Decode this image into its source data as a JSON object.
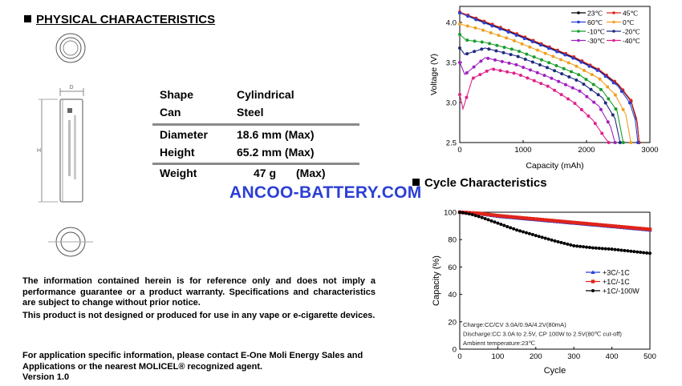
{
  "physical": {
    "title": "PHYSICAL CHARACTERISTICS",
    "drawing": {
      "dim_d": "D",
      "dim_h": "H"
    },
    "specs": [
      {
        "label": "Shape",
        "value": "Cylindrical"
      },
      {
        "label": "Can",
        "value": "Steel"
      },
      {
        "label": "Diameter",
        "value": "18.6 mm (Max)"
      },
      {
        "label": "Height",
        "value": "65.2 mm (Max)"
      },
      {
        "label": "Weight",
        "value": "47 g",
        "unit": "(Max)"
      }
    ]
  },
  "watermark": "ANCOO-BATTERY.COM",
  "notes": {
    "disclaimer": "The information contained herein is for reference only and does not imply a performance guarantee or a product warranty. Specifications and characteristics are subject to change without prior notice.",
    "usage": "This product is not designed or produced for use in any vape or e-cigarette devices.",
    "contact": "For application specific information, please contact E-One Moli Energy Sales and Applications or the nearest MOLICEL® recognized agent.",
    "version": "Version 1.0"
  },
  "cycle_title": "Cycle Characteristics",
  "chart_data": [
    {
      "type": "line",
      "xlabel": "Capacity (mAh)",
      "ylabel": "Voltage (V)",
      "xlim": [
        0,
        3000
      ],
      "ylim": [
        2.5,
        4.2
      ],
      "xticks": [
        "0",
        "1000",
        "2000",
        "3000"
      ],
      "yticks": [
        "2.5",
        "3.0",
        "3.5",
        "4.0"
      ],
      "legend_position": "top-right",
      "series": [
        {
          "name": "23℃",
          "color": "#000000",
          "points": [
            [
              0,
              4.12
            ],
            [
              300,
              4.03
            ],
            [
              800,
              3.88
            ],
            [
              1300,
              3.72
            ],
            [
              1800,
              3.56
            ],
            [
              2200,
              3.4
            ],
            [
              2500,
              3.22
            ],
            [
              2700,
              3.02
            ],
            [
              2800,
              2.75
            ],
            [
              2830,
              2.5
            ]
          ]
        },
        {
          "name": "45℃",
          "color": "#e0241b",
          "points": [
            [
              0,
              4.13
            ],
            [
              300,
              4.04
            ],
            [
              800,
              3.89
            ],
            [
              1300,
              3.73
            ],
            [
              1800,
              3.57
            ],
            [
              2200,
              3.41
            ],
            [
              2500,
              3.23
            ],
            [
              2700,
              3.03
            ],
            [
              2790,
              2.8
            ],
            [
              2830,
              2.5
            ]
          ]
        },
        {
          "name": "60℃",
          "color": "#2b3fd6",
          "points": [
            [
              0,
              4.12
            ],
            [
              300,
              4.02
            ],
            [
              800,
              3.87
            ],
            [
              1300,
              3.71
            ],
            [
              1800,
              3.55
            ],
            [
              2200,
              3.39
            ],
            [
              2500,
              3.2
            ],
            [
              2680,
              3.0
            ],
            [
              2770,
              2.78
            ],
            [
              2810,
              2.5
            ]
          ]
        },
        {
          "name": "0℃",
          "color": "#f0a020",
          "points": [
            [
              0,
              3.98
            ],
            [
              300,
              3.92
            ],
            [
              800,
              3.79
            ],
            [
              1300,
              3.63
            ],
            [
              1800,
              3.47
            ],
            [
              2200,
              3.3
            ],
            [
              2450,
              3.1
            ],
            [
              2620,
              2.85
            ],
            [
              2700,
              2.5
            ]
          ]
        },
        {
          "name": "-10℃",
          "color": "#1a9e2c",
          "points": [
            [
              0,
              3.85
            ],
            [
              100,
              3.78
            ],
            [
              400,
              3.75
            ],
            [
              900,
              3.65
            ],
            [
              1400,
              3.5
            ],
            [
              1900,
              3.34
            ],
            [
              2250,
              3.15
            ],
            [
              2480,
              2.9
            ],
            [
              2580,
              2.5
            ]
          ]
        },
        {
          "name": "-20℃",
          "color": "#1f2a80",
          "points": [
            [
              0,
              3.68
            ],
            [
              80,
              3.6
            ],
            [
              400,
              3.68
            ],
            [
              900,
              3.58
            ],
            [
              1400,
              3.43
            ],
            [
              1900,
              3.26
            ],
            [
              2250,
              3.06
            ],
            [
              2450,
              2.8
            ],
            [
              2530,
              2.5
            ]
          ]
        },
        {
          "name": "-30℃",
          "color": "#a020c0",
          "points": [
            [
              0,
              3.5
            ],
            [
              80,
              3.35
            ],
            [
              400,
              3.56
            ],
            [
              900,
              3.47
            ],
            [
              1400,
              3.32
            ],
            [
              1900,
              3.14
            ],
            [
              2200,
              2.95
            ],
            [
              2380,
              2.7
            ],
            [
              2450,
              2.5
            ]
          ]
        },
        {
          "name": "-40℃",
          "color": "#e0208c",
          "points": [
            [
              0,
              3.1
            ],
            [
              50,
              2.92
            ],
            [
              200,
              3.3
            ],
            [
              500,
              3.42
            ],
            [
              900,
              3.36
            ],
            [
              1400,
              3.2
            ],
            [
              1800,
              3.0
            ],
            [
              2100,
              2.78
            ],
            [
              2300,
              2.55
            ],
            [
              2350,
              2.5
            ]
          ]
        }
      ]
    },
    {
      "type": "line",
      "xlabel": "Cycle",
      "ylabel": "Capacity (%)",
      "xlim": [
        0,
        500
      ],
      "ylim": [
        0,
        100
      ],
      "xticks": [
        "0",
        "100",
        "200",
        "300",
        "400",
        "500"
      ],
      "yticks": [
        "0",
        "20",
        "40",
        "60",
        "80",
        "100"
      ],
      "legend_position": "center-right",
      "series": [
        {
          "name": "+3C/-1C",
          "color": "#2b3fd6",
          "points": [
            [
              0,
              100
            ],
            [
              50,
              99
            ],
            [
              100,
              97
            ],
            [
              200,
              94.5
            ],
            [
              300,
              92
            ],
            [
              400,
              89.5
            ],
            [
              500,
              87
            ]
          ]
        },
        {
          "name": "+1C/-1C",
          "color": "#e0241b",
          "points": [
            [
              0,
              100
            ],
            [
              50,
              99.2
            ],
            [
              100,
              97.5
            ],
            [
              200,
              95
            ],
            [
              300,
              92.5
            ],
            [
              400,
              90
            ],
            [
              500,
              87.5
            ]
          ]
        },
        {
          "name": "+1C/-100W",
          "color": "#000000",
          "points": [
            [
              0,
              100
            ],
            [
              30,
              98.5
            ],
            [
              60,
              96
            ],
            [
              100,
              92
            ],
            [
              150,
              87
            ],
            [
              200,
              83
            ],
            [
              250,
              79
            ],
            [
              300,
              75.5
            ],
            [
              350,
              74
            ],
            [
              400,
              73
            ],
            [
              450,
              71.5
            ],
            [
              500,
              70
            ]
          ]
        }
      ],
      "annotations": [
        "Charge:CC/CV 3.0A/0.9A/4.2V(80mA)",
        "Discharge:CC 3.0A to 2.5V, CP 100W to 2.5V(80℃ cut-off)",
        "Ambient temperature:23℃"
      ]
    }
  ]
}
